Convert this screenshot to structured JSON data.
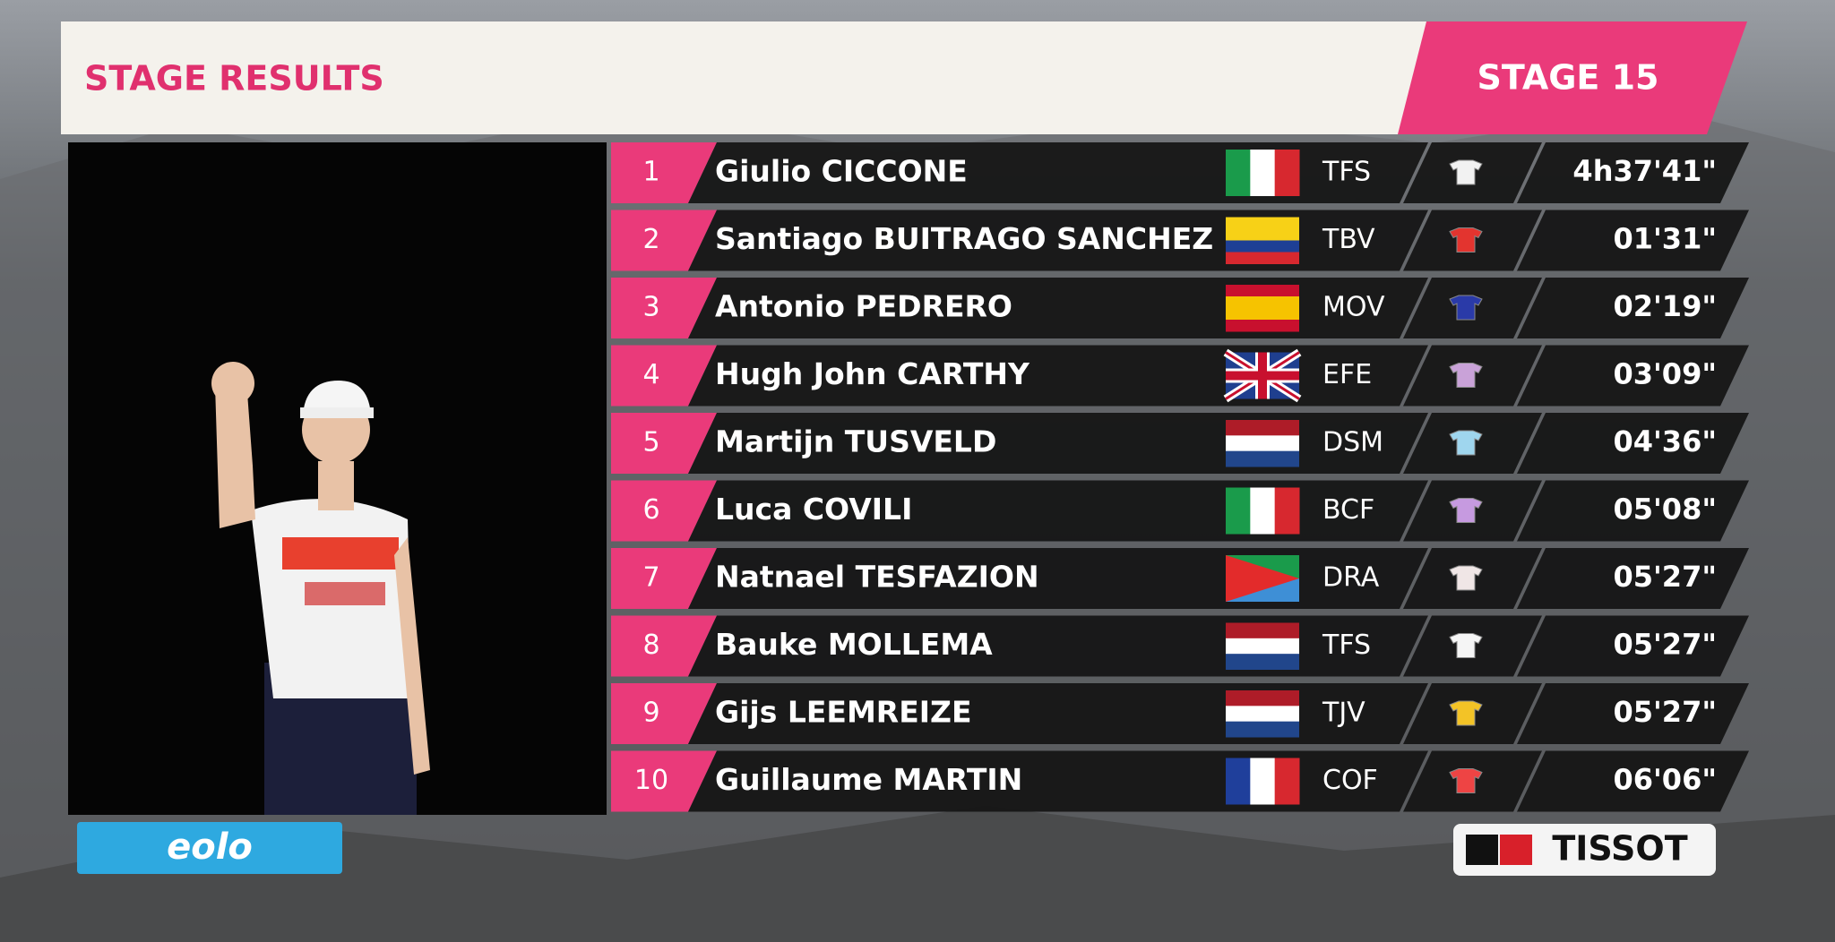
{
  "header": {
    "title": "STAGE RESULTS",
    "stage": "STAGE 15"
  },
  "table": {
    "rows": [
      {
        "rank": 1,
        "name": "Giulio CICCONE",
        "team": "TFS",
        "time": "4h37'41\""
      },
      {
        "rank": 2,
        "name": "Santiago BUITRAGO SANCHEZ",
        "team": "TBV",
        "time": "01'31\""
      },
      {
        "rank": 3,
        "name": "Antonio PEDRERO",
        "team": "MOV",
        "time": "02'19\""
      },
      {
        "rank": 4,
        "name": "Hugh John CARTHY",
        "team": "EFE",
        "time": "03'09\""
      },
      {
        "rank": 5,
        "name": "Martijn TUSVELD",
        "team": "DSM",
        "time": "04'36\""
      },
      {
        "rank": 6,
        "name": "Luca COVILI",
        "team": "BCF",
        "time": "05'08\""
      },
      {
        "rank": 7,
        "name": "Natnael TESFAZION",
        "team": "DRA",
        "time": "05'27\""
      },
      {
        "rank": 8,
        "name": "Bauke MOLLEMA",
        "team": "TFS",
        "time": "05'27\""
      },
      {
        "rank": 9,
        "name": "Gijs LEEMREIZE",
        "team": "TJV",
        "time": "05'27\""
      },
      {
        "rank": 10,
        "name": "Guillaume MARTIN",
        "team": "COF",
        "time": "06'06\""
      }
    ]
  },
  "sponsors": {
    "left": "eolo",
    "right": "TISSOT"
  }
}
